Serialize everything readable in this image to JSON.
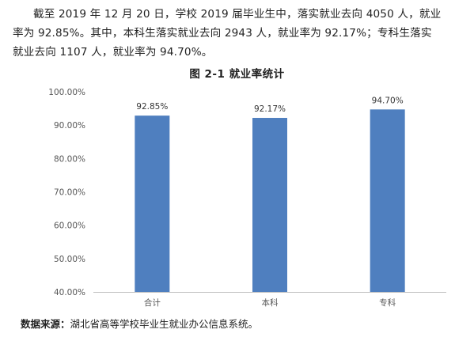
{
  "text": {
    "line1": "截至 2019 年 12 月 20 日，学校 2019 届毕业生中，落实就业去向 4050 人，就业",
    "line2": "率为 92.85%。其中，本科生落实就业去向 2943 人，就业率为 92.17%；专科生落实",
    "line3": "就业去向 1107 人，就业率为 94.70%。"
  },
  "figure_title": "图 2-1   就业率统计",
  "source": {
    "label": "数据来源",
    "colon": "：",
    "text": "湖北省高等学校毕业生就业办公信息系统。"
  },
  "chart_data": {
    "type": "bar",
    "title": "图 2-1 就业率统计",
    "categories": [
      "合计",
      "本科",
      "专科"
    ],
    "values": [
      92.85,
      92.17,
      94.7
    ],
    "value_labels": [
      "92.85%",
      "92.17%",
      "94.70%"
    ],
    "ylim": [
      40,
      100
    ],
    "yticks": [
      40,
      50,
      60,
      70,
      80,
      90,
      100
    ],
    "ytick_labels": [
      "40.00%",
      "50.00%",
      "60.00%",
      "70.00%",
      "80.00%",
      "90.00%",
      "100.00%"
    ],
    "grid": false,
    "bar_color": "#4f7fbf",
    "axis_color": "#bfbfbf",
    "label_color": "#555555"
  }
}
